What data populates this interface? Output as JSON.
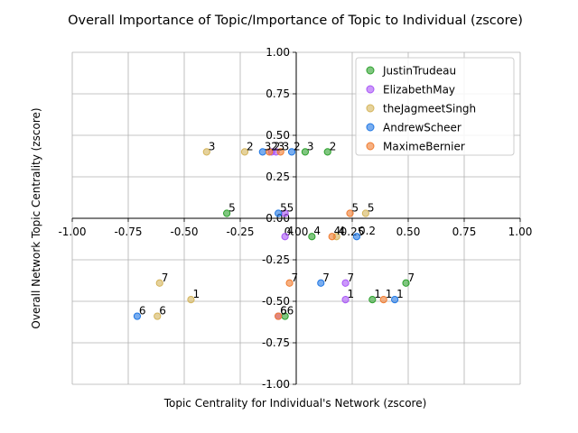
{
  "chart_data": {
    "type": "scatter",
    "title": "Overall Importance of Topic/Importance of Topic to Individual (zscore)",
    "xlabel": "Topic Centrality for Individual's Network (zscore)",
    "ylabel": "Overall Network Topic Centrality (zscore)",
    "xlim": [
      -1.0,
      1.0
    ],
    "ylim": [
      -1.0,
      1.0
    ],
    "xticks": [
      "-1.00",
      "-0.75",
      "-0.50",
      "-0.25",
      "0.00",
      "0.25",
      "0.50",
      "0.75",
      "1.00"
    ],
    "yticks": [
      "-1.00",
      "-0.75",
      "-0.50",
      "-0.25",
      "0.00",
      "0.25",
      "0.50",
      "0.75",
      "1.00"
    ],
    "grid": true,
    "legend_position": "top-right",
    "series": [
      {
        "name": "JustinTrudeau",
        "color": "#2ca02c",
        "points": [
          {
            "x": 0.04,
            "y": 0.4,
            "label": "3"
          },
          {
            "x": 0.14,
            "y": 0.4,
            "label": "2"
          },
          {
            "x": -0.31,
            "y": 0.03,
            "label": "5"
          },
          {
            "x": 0.07,
            "y": -0.11,
            "label": "4"
          },
          {
            "x": 0.49,
            "y": -0.39,
            "label": "7"
          },
          {
            "x": 0.34,
            "y": -0.49,
            "label": "1"
          },
          {
            "x": -0.05,
            "y": -0.59,
            "label": "6"
          }
        ]
      },
      {
        "name": "ElizabethMay",
        "color": "#a855f7",
        "points": [
          {
            "x": -0.09,
            "y": 0.4,
            "label": "3"
          },
          {
            "x": -0.11,
            "y": 0.4,
            "label": "2"
          },
          {
            "x": -0.05,
            "y": 0.03,
            "label": "5"
          },
          {
            "x": -0.05,
            "y": -0.11,
            "label": "4"
          },
          {
            "x": 0.22,
            "y": -0.39,
            "label": "7"
          },
          {
            "x": 0.22,
            "y": -0.49,
            "label": "1"
          },
          {
            "x": -0.08,
            "y": -0.59,
            "label": "6"
          }
        ]
      },
      {
        "name": "theJagmeetSingh",
        "color": "#d4b45a",
        "points": [
          {
            "x": -0.4,
            "y": 0.4,
            "label": "3"
          },
          {
            "x": -0.23,
            "y": 0.4,
            "label": "2"
          },
          {
            "x": 0.31,
            "y": 0.03,
            "label": "5"
          },
          {
            "x": 0.18,
            "y": -0.11,
            "label": "4"
          },
          {
            "x": -0.61,
            "y": -0.39,
            "label": "7"
          },
          {
            "x": -0.47,
            "y": -0.49,
            "label": "1"
          },
          {
            "x": -0.62,
            "y": -0.59,
            "label": "6"
          }
        ]
      },
      {
        "name": "AndrewScheer",
        "color": "#1f77e4",
        "points": [
          {
            "x": -0.15,
            "y": 0.4,
            "label": "3"
          },
          {
            "x": -0.02,
            "y": 0.4,
            "label": "2"
          },
          {
            "x": -0.08,
            "y": 0.03,
            "label": "5"
          },
          {
            "x": 0.27,
            "y": -0.11,
            "label": "0.2"
          },
          {
            "x": 0.11,
            "y": -0.39,
            "label": "7"
          },
          {
            "x": 0.44,
            "y": -0.49,
            "label": "1"
          },
          {
            "x": -0.71,
            "y": -0.59,
            "label": "6"
          }
        ]
      },
      {
        "name": "MaximeBernier",
        "color": "#f07b2f",
        "points": [
          {
            "x": -0.07,
            "y": 0.4,
            "label": "3"
          },
          {
            "x": -0.12,
            "y": 0.4,
            "label": "2"
          },
          {
            "x": 0.24,
            "y": 0.03,
            "label": "5"
          },
          {
            "x": 0.16,
            "y": -0.11,
            "label": "4"
          },
          {
            "x": -0.03,
            "y": -0.39,
            "label": "7"
          },
          {
            "x": 0.39,
            "y": -0.49,
            "label": "1"
          },
          {
            "x": -0.08,
            "y": -0.59,
            "label": "6"
          }
        ]
      }
    ]
  }
}
